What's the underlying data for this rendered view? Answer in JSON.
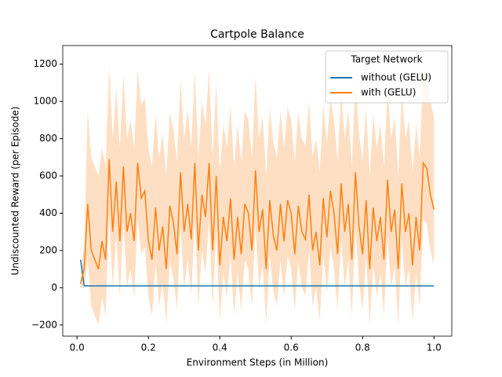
{
  "chart_data": {
    "type": "line",
    "title": "Cartpole Balance",
    "xlabel": "Environment Steps (in Million)",
    "ylabel": "Undiscounted Reward (per Episode)",
    "x": [
      0.01,
      0.02,
      0.03,
      0.04,
      0.05,
      0.06,
      0.07,
      0.08,
      0.09,
      0.1,
      0.11,
      0.12,
      0.13,
      0.14,
      0.15,
      0.16,
      0.17,
      0.18,
      0.19,
      0.2,
      0.21,
      0.22,
      0.23,
      0.24,
      0.25,
      0.26,
      0.27,
      0.28,
      0.29,
      0.3,
      0.31,
      0.32,
      0.33,
      0.34,
      0.35,
      0.36,
      0.37,
      0.38,
      0.39,
      0.4,
      0.41,
      0.42,
      0.43,
      0.44,
      0.45,
      0.46,
      0.47,
      0.48,
      0.49,
      0.5,
      0.51,
      0.52,
      0.53,
      0.54,
      0.55,
      0.56,
      0.57,
      0.58,
      0.59,
      0.6,
      0.61,
      0.62,
      0.63,
      0.64,
      0.65,
      0.66,
      0.67,
      0.68,
      0.69,
      0.7,
      0.71,
      0.72,
      0.73,
      0.74,
      0.75,
      0.76,
      0.77,
      0.78,
      0.79,
      0.8,
      0.81,
      0.82,
      0.83,
      0.84,
      0.85,
      0.86,
      0.87,
      0.88,
      0.89,
      0.9,
      0.91,
      0.92,
      0.93,
      0.94,
      0.95,
      0.96,
      0.97,
      0.98,
      0.99,
      1.0
    ],
    "series": [
      {
        "name": "without (GELU)",
        "color": "#1f77b4",
        "values": [
          150,
          10,
          10,
          10,
          10,
          10,
          10,
          10,
          10,
          10,
          10,
          10,
          10,
          10,
          10,
          10,
          10,
          10,
          10,
          10,
          10,
          10,
          10,
          10,
          10,
          10,
          10,
          10,
          10,
          10,
          10,
          10,
          10,
          10,
          10,
          10,
          10,
          10,
          10,
          10,
          10,
          10,
          10,
          10,
          10,
          10,
          10,
          10,
          10,
          10,
          10,
          10,
          10,
          10,
          10,
          10,
          10,
          10,
          10,
          10,
          10,
          10,
          10,
          10,
          10,
          10,
          10,
          10,
          10,
          10,
          10,
          10,
          10,
          10,
          10,
          10,
          10,
          10,
          10,
          10,
          10,
          10,
          10,
          10,
          10,
          10,
          10,
          10,
          10,
          10,
          10,
          10,
          10,
          10,
          10,
          10,
          10,
          10,
          10,
          10
        ]
      },
      {
        "name": "with (GELU)",
        "color": "#ff7f0e",
        "values": [
          20,
          100,
          450,
          200,
          150,
          100,
          250,
          150,
          690,
          300,
          570,
          250,
          650,
          300,
          400,
          250,
          670,
          480,
          520,
          250,
          150,
          430,
          200,
          330,
          100,
          440,
          350,
          180,
          620,
          300,
          450,
          260,
          670,
          200,
          500,
          380,
          670,
          200,
          600,
          120,
          380,
          250,
          480,
          150,
          380,
          180,
          450,
          400,
          200,
          630,
          300,
          420,
          100,
          470,
          280,
          200,
          450,
          250,
          470,
          400,
          180,
          440,
          300,
          260,
          500,
          200,
          300,
          120,
          480,
          270,
          520,
          400,
          180,
          560,
          300,
          450,
          150,
          620,
          330,
          180,
          470,
          100,
          430,
          250,
          380,
          150,
          580,
          300,
          420,
          100,
          560,
          300,
          400,
          120,
          380,
          200,
          670,
          640,
          500,
          420
        ],
        "lower": [
          0,
          0,
          150,
          -100,
          -150,
          -200,
          -50,
          -150,
          390,
          0,
          270,
          -50,
          350,
          0,
          100,
          -50,
          370,
          180,
          220,
          -50,
          -150,
          130,
          -100,
          30,
          -200,
          140,
          50,
          -120,
          320,
          0,
          150,
          -40,
          370,
          -100,
          200,
          80,
          370,
          -100,
          300,
          -180,
          80,
          -50,
          180,
          -150,
          80,
          -120,
          150,
          100,
          -100,
          330,
          0,
          120,
          -200,
          170,
          -20,
          -100,
          150,
          -50,
          170,
          100,
          -120,
          140,
          0,
          -40,
          200,
          -100,
          0,
          -180,
          180,
          -30,
          220,
          100,
          -120,
          260,
          0,
          150,
          -150,
          320,
          30,
          -120,
          170,
          -200,
          130,
          -50,
          80,
          -150,
          280,
          0,
          120,
          -200,
          260,
          0,
          100,
          -180,
          80,
          -100,
          370,
          340,
          200,
          120
        ],
        "upper": [
          40,
          250,
          950,
          700,
          650,
          600,
          750,
          650,
          1190,
          800,
          1070,
          750,
          1150,
          800,
          900,
          750,
          1170,
          980,
          1020,
          750,
          650,
          930,
          700,
          830,
          600,
          940,
          850,
          680,
          1120,
          800,
          950,
          760,
          1170,
          700,
          1000,
          880,
          1170,
          700,
          1100,
          620,
          880,
          750,
          980,
          650,
          880,
          680,
          950,
          900,
          700,
          1130,
          800,
          920,
          600,
          970,
          780,
          700,
          950,
          750,
          970,
          900,
          680,
          940,
          800,
          760,
          1000,
          700,
          800,
          620,
          980,
          770,
          1020,
          900,
          680,
          1060,
          800,
          950,
          650,
          1120,
          830,
          680,
          970,
          600,
          930,
          750,
          880,
          650,
          1080,
          800,
          920,
          600,
          1060,
          800,
          900,
          620,
          880,
          700,
          1170,
          1140,
          1000,
          920
        ]
      }
    ],
    "xlim": [
      -0.04,
      1.05
    ],
    "ylim": [
      -260,
      1300
    ],
    "xticks": [
      {
        "value": 0,
        "label": "0.0"
      },
      0.2,
      0.4,
      0.6,
      0.8,
      {
        "value": 1,
        "label": "1.0"
      }
    ],
    "yticks": [
      {
        "value": -200,
        "label": "−200"
      },
      0,
      200,
      400,
      600,
      800,
      1000,
      1200
    ],
    "legend": {
      "title": "Target Network",
      "position": "upper right"
    }
  }
}
